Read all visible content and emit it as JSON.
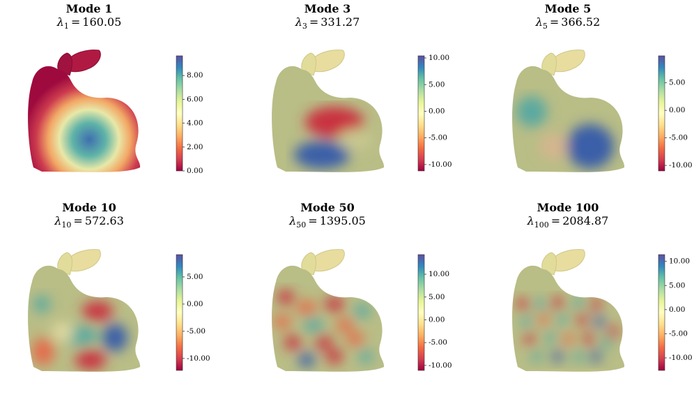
{
  "panels": [
    {
      "title": "Mode 1",
      "eigen": {
        "symbol": "λ",
        "index": "1",
        "eq": "=",
        "value": 160.05
      },
      "colorbar": {
        "clim": [
          0,
          9.65
        ],
        "ticks": [
          {
            "value": 0,
            "label": "0.00"
          },
          {
            "value": 2,
            "label": "2.00"
          },
          {
            "value": 4,
            "label": "4.00"
          },
          {
            "value": 6,
            "label": "6.00"
          },
          {
            "value": 8,
            "label": "8.00"
          }
        ]
      }
    },
    {
      "title": "Mode 3",
      "eigen": {
        "symbol": "λ",
        "index": "3",
        "eq": "=",
        "value": 331.27
      },
      "colorbar": {
        "clim": [
          -11.2,
          10.4
        ],
        "ticks": [
          {
            "value": -10,
            "label": "-10.00"
          },
          {
            "value": -5,
            "label": "-5.00"
          },
          {
            "value": 0,
            "label": "0.00"
          },
          {
            "value": 5,
            "label": "5.00"
          },
          {
            "value": 10,
            "label": "10.00"
          }
        ]
      }
    },
    {
      "title": "Mode 5",
      "eigen": {
        "symbol": "λ",
        "index": "5",
        "eq": "=",
        "value": 366.52
      },
      "colorbar": {
        "clim": [
          -11.0,
          9.9
        ],
        "ticks": [
          {
            "value": -10,
            "label": "-10.00"
          },
          {
            "value": -5,
            "label": "-5.00"
          },
          {
            "value": 0,
            "label": "0.00"
          },
          {
            "value": 5,
            "label": "5.00"
          }
        ]
      }
    },
    {
      "title": "Mode 10",
      "eigen": {
        "symbol": "λ",
        "index": "10",
        "eq": "=",
        "value": 572.63
      },
      "colorbar": {
        "clim": [
          -12.2,
          9.1
        ],
        "ticks": [
          {
            "value": -10,
            "label": "-10.00"
          },
          {
            "value": -5,
            "label": "-5.00"
          },
          {
            "value": 0,
            "label": "0.00"
          },
          {
            "value": 5,
            "label": "5.00"
          }
        ]
      }
    },
    {
      "title": "Mode 50",
      "eigen": {
        "symbol": "λ",
        "index": "50",
        "eq": "=",
        "value": 1395.05
      },
      "colorbar": {
        "clim": [
          -11.1,
          14.3
        ],
        "ticks": [
          {
            "value": -10,
            "label": "-10.00"
          },
          {
            "value": -5,
            "label": "-5.00"
          },
          {
            "value": 0,
            "label": "0.00"
          },
          {
            "value": 5,
            "label": "5.00"
          },
          {
            "value": 10,
            "label": "10.00"
          }
        ]
      }
    },
    {
      "title": "Mode 100",
      "eigen": {
        "symbol": "λ",
        "index": "100",
        "eq": "=",
        "value": 2084.87
      },
      "colorbar": {
        "clim": [
          -12.6,
          11.4
        ],
        "ticks": [
          {
            "value": -10,
            "label": "-10.00"
          },
          {
            "value": -5,
            "label": "-5.00"
          },
          {
            "value": 0,
            "label": "0.00"
          },
          {
            "value": 5,
            "label": "5.00"
          },
          {
            "value": 10,
            "label": "10.00"
          }
        ]
      }
    }
  ]
}
